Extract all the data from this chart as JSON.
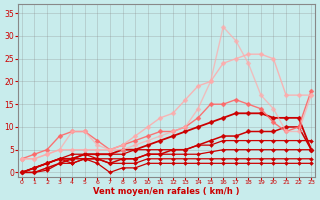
{
  "x": [
    0,
    1,
    2,
    3,
    4,
    5,
    6,
    7,
    8,
    9,
    10,
    11,
    12,
    13,
    14,
    15,
    16,
    17,
    18,
    19,
    20,
    21,
    22,
    23
  ],
  "series": [
    {
      "y": [
        0,
        0,
        0.5,
        2,
        2,
        3,
        2,
        0,
        1,
        1,
        2,
        2,
        2,
        2,
        2,
        2,
        2,
        2,
        2,
        2,
        2,
        2,
        2,
        2
      ],
      "color": "#cc0000",
      "alpha": 1.0,
      "linewidth": 0.9,
      "marker": "D",
      "markersize": 2.0
    },
    {
      "y": [
        0,
        1,
        2,
        3,
        2,
        3,
        3,
        2,
        2,
        2,
        3,
        3,
        3,
        3,
        3,
        3,
        3,
        3,
        3,
        3,
        3,
        3,
        3,
        3
      ],
      "color": "#cc0000",
      "alpha": 1.0,
      "linewidth": 0.9,
      "marker": "D",
      "markersize": 2.0
    },
    {
      "y": [
        0,
        1,
        2,
        3,
        3,
        4,
        3,
        3,
        3,
        3,
        4,
        4,
        4,
        4,
        4,
        4.5,
        5,
        5,
        5,
        5,
        5,
        5,
        5,
        5
      ],
      "color": "#cc0000",
      "alpha": 1.0,
      "linewidth": 0.9,
      "marker": "D",
      "markersize": 2.0
    },
    {
      "y": [
        0,
        1,
        2,
        3,
        4,
        4,
        4,
        4,
        4,
        5,
        5,
        5,
        5,
        5,
        6,
        6,
        7,
        7,
        7,
        7,
        7,
        7,
        7,
        7
      ],
      "color": "#cc0000",
      "alpha": 1.0,
      "linewidth": 0.9,
      "marker": "D",
      "markersize": 2.0
    },
    {
      "y": [
        0,
        0,
        1,
        2,
        3,
        3,
        3,
        2,
        3,
        3,
        4,
        4,
        5,
        5,
        6,
        7,
        8,
        8,
        9,
        9,
        9,
        10,
        10,
        5
      ],
      "color": "#cc0000",
      "alpha": 1.0,
      "linewidth": 1.1,
      "marker": "D",
      "markersize": 2.5
    },
    {
      "y": [
        0,
        1,
        2,
        3,
        3,
        4,
        4,
        4,
        5,
        5,
        6,
        7,
        8,
        9,
        10,
        11,
        12,
        13,
        13,
        13,
        12,
        12,
        12,
        5
      ],
      "color": "#cc0000",
      "alpha": 1.0,
      "linewidth": 1.3,
      "marker": "D",
      "markersize": 2.5
    },
    {
      "y": [
        3,
        4,
        5,
        8,
        9,
        9,
        7,
        5,
        6,
        7,
        8,
        9,
        9,
        10,
        12,
        15,
        15,
        16,
        15,
        14,
        11,
        9,
        10,
        18
      ],
      "color": "#ff6666",
      "alpha": 0.9,
      "linewidth": 1.0,
      "marker": "D",
      "markersize": 2.5
    },
    {
      "y": [
        3,
        3,
        4,
        5,
        5,
        5,
        5,
        5,
        6,
        8,
        10,
        12,
        13,
        16,
        19,
        20,
        24,
        25,
        26,
        26,
        25,
        17,
        17,
        17
      ],
      "color": "#ffaaaa",
      "alpha": 0.85,
      "linewidth": 1.0,
      "marker": "D",
      "markersize": 2.5
    },
    {
      "y": [
        3,
        3,
        4,
        5,
        9,
        9,
        6,
        5,
        5,
        6,
        7,
        8,
        9,
        10,
        14,
        20,
        32,
        29,
        24,
        17,
        14,
        9,
        9,
        17
      ],
      "color": "#ffaaaa",
      "alpha": 0.7,
      "linewidth": 1.0,
      "marker": "D",
      "markersize": 2.5
    }
  ],
  "xlim": [
    -0.3,
    23.3
  ],
  "ylim": [
    -1,
    37
  ],
  "yticks": [
    0,
    5,
    10,
    15,
    20,
    25,
    30,
    35
  ],
  "xticks": [
    0,
    1,
    2,
    3,
    4,
    5,
    6,
    7,
    8,
    9,
    10,
    11,
    12,
    13,
    14,
    15,
    16,
    17,
    18,
    19,
    20,
    21,
    22,
    23
  ],
  "xlabel": "Vent moyen/en rafales ( km/h )",
  "bg_color": "#c8ecec",
  "grid_color": "#888888",
  "axis_color": "#888888",
  "tick_color": "#cc0000",
  "xlabel_color": "#cc0000"
}
